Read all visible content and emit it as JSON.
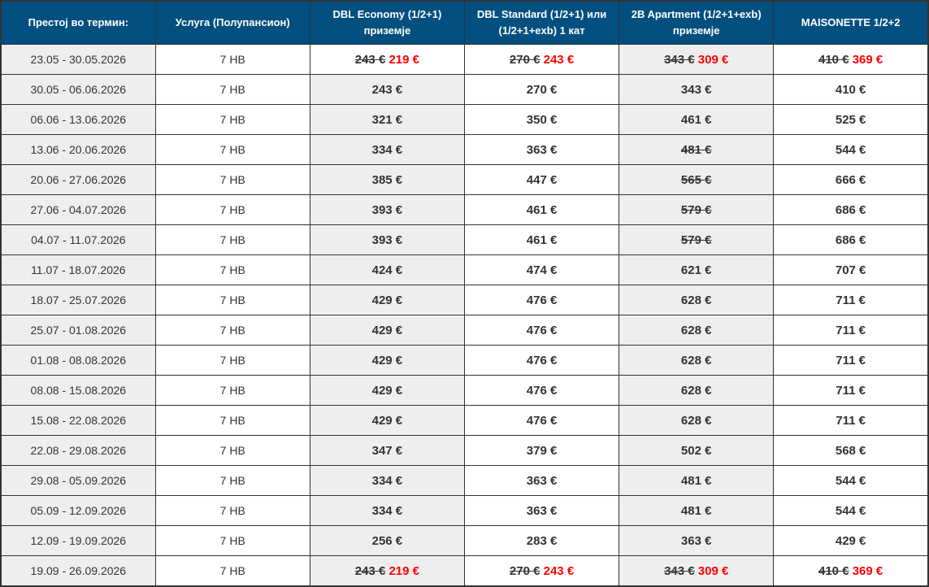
{
  "colors": {
    "header_bg": "#034f80",
    "promo_price": "#ff0000",
    "shaded_cell": "#eeeeee"
  },
  "headers": [
    "Престој во термин:",
    "Услуга (Полупансион)",
    "DBL Economy (1/2+1) приземје",
    "DBL Standard (1/2+1) или (1/2+1+exb) 1 кат",
    "2B Apartment (1/2+1+exb) приземје",
    "MAISONETTE  1/2+2"
  ],
  "rows": [
    {
      "period": "23.05 - 30.05.2026",
      "service": "7 HB",
      "prices": [
        {
          "old": "243 €",
          "new": "219 €"
        },
        {
          "old": "270 €",
          "new": "243 €"
        },
        {
          "old": "343 €",
          "new": "309 €"
        },
        {
          "old": "410 €",
          "new": "369 €"
        }
      ]
    },
    {
      "period": "30.05 - 06.06.2026",
      "service": "7 HB",
      "prices": [
        {
          "value": "243 €"
        },
        {
          "value": "270 €"
        },
        {
          "value": "343 €"
        },
        {
          "value": "410 €"
        }
      ]
    },
    {
      "period": "06.06 - 13.06.2026",
      "service": "7 HB",
      "prices": [
        {
          "value": "321 €"
        },
        {
          "value": "350 €"
        },
        {
          "value": "461 €"
        },
        {
          "value": "525 €"
        }
      ]
    },
    {
      "period": "13.06 - 20.06.2026",
      "service": "7 HB",
      "prices": [
        {
          "value": "334 €"
        },
        {
          "value": "363 €"
        },
        {
          "old": "481 €"
        },
        {
          "value": "544 €"
        }
      ]
    },
    {
      "period": "20.06 - 27.06.2026",
      "service": "7 HB",
      "prices": [
        {
          "value": "385 €"
        },
        {
          "value": "447 €"
        },
        {
          "old": "565 €"
        },
        {
          "value": "666 €"
        }
      ]
    },
    {
      "period": "27.06 - 04.07.2026",
      "service": "7 HB",
      "prices": [
        {
          "value": "393 €"
        },
        {
          "value": "461 €"
        },
        {
          "old": "579 €"
        },
        {
          "value": "686 €"
        }
      ]
    },
    {
      "period": "04.07 - 11.07.2026",
      "service": "7 HB",
      "prices": [
        {
          "value": "393 €"
        },
        {
          "value": "461 €"
        },
        {
          "old": "579 €"
        },
        {
          "value": "686 €"
        }
      ]
    },
    {
      "period": "11.07 - 18.07.2026",
      "service": "7 HB",
      "prices": [
        {
          "value": "424 €"
        },
        {
          "value": "474 €"
        },
        {
          "value": "621 €"
        },
        {
          "value": "707 €"
        }
      ]
    },
    {
      "period": "18.07 - 25.07.2026",
      "service": "7 HB",
      "prices": [
        {
          "value": "429 €"
        },
        {
          "value": "476 €"
        },
        {
          "value": "628 €"
        },
        {
          "value": "711 €"
        }
      ]
    },
    {
      "period": "25.07 - 01.08.2026",
      "service": "7 HB",
      "prices": [
        {
          "value": "429 €"
        },
        {
          "value": "476 €"
        },
        {
          "value": "628 €"
        },
        {
          "value": "711 €"
        }
      ]
    },
    {
      "period": "01.08 - 08.08.2026",
      "service": "7 HB",
      "prices": [
        {
          "value": "429 €"
        },
        {
          "value": "476 €"
        },
        {
          "value": "628 €"
        },
        {
          "value": "711 €"
        }
      ]
    },
    {
      "period": "08.08 - 15.08.2026",
      "service": "7 HB",
      "prices": [
        {
          "value": "429 €"
        },
        {
          "value": "476 €"
        },
        {
          "value": "628 €"
        },
        {
          "value": "711 €"
        }
      ]
    },
    {
      "period": "15.08 - 22.08.2026",
      "service": "7 HB",
      "prices": [
        {
          "value": "429 €"
        },
        {
          "value": "476 €"
        },
        {
          "value": "628 €"
        },
        {
          "value": "711 €"
        }
      ]
    },
    {
      "period": "22.08 - 29.08.2026",
      "service": "7 HB",
      "prices": [
        {
          "value": "347 €"
        },
        {
          "value": "379 €"
        },
        {
          "value": "502 €"
        },
        {
          "value": "568 €"
        }
      ]
    },
    {
      "period": "29.08 - 05.09.2026",
      "service": "7 HB",
      "prices": [
        {
          "value": "334 €"
        },
        {
          "value": "363 €"
        },
        {
          "value": "481 €"
        },
        {
          "value": "544 €"
        }
      ]
    },
    {
      "period": "05.09 - 12.09.2026",
      "service": "7 HB",
      "prices": [
        {
          "value": "334 €"
        },
        {
          "value": "363 €"
        },
        {
          "value": "481 €"
        },
        {
          "value": "544 €"
        }
      ]
    },
    {
      "period": "12.09 - 19.09.2026",
      "service": "7 HB",
      "prices": [
        {
          "value": "256 €"
        },
        {
          "value": "283 €"
        },
        {
          "value": "363 €"
        },
        {
          "value": "429 €"
        }
      ]
    },
    {
      "period": "19.09 - 26.09.2026",
      "service": "7 HB",
      "prices": [
        {
          "old": "243 €",
          "new": "219 €"
        },
        {
          "old": "270 €",
          "new": "243 €"
        },
        {
          "old": "343 €",
          "new": "309 €"
        },
        {
          "old": "410 €",
          "new": "369 €"
        }
      ]
    }
  ]
}
